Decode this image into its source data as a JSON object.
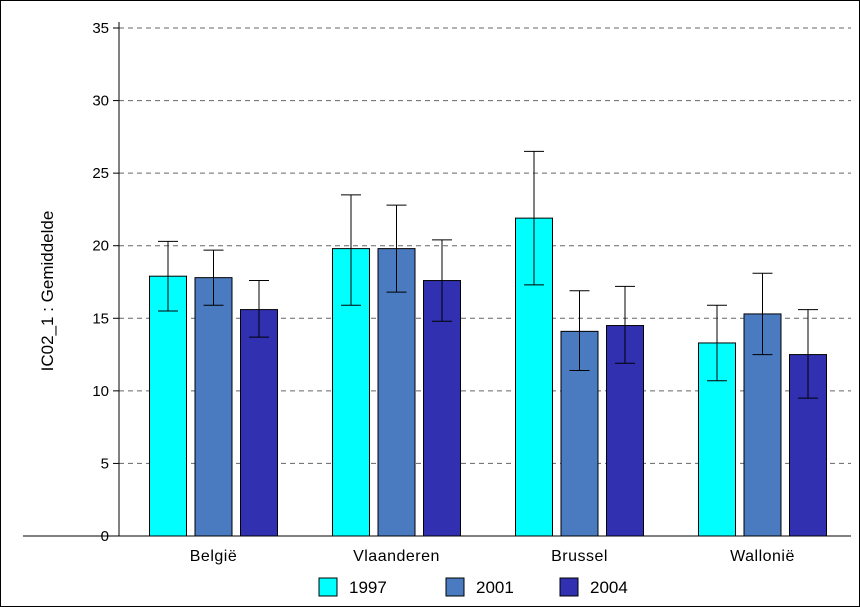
{
  "chart_data": {
    "type": "bar",
    "ylabel": "IC02_1 : Gemiddelde",
    "xlabel": "",
    "ylim": [
      0,
      35
    ],
    "yticks": [
      0,
      5,
      10,
      15,
      20,
      25,
      30,
      35
    ],
    "grid": true,
    "legend_position": "bottom",
    "categories": [
      "België",
      "Vlaanderen",
      "Brussel",
      "Wallonië"
    ],
    "series": [
      {
        "name": "1997",
        "color": "#00ffff",
        "values": [
          17.9,
          19.8,
          21.9,
          13.3
        ],
        "error_low": [
          15.5,
          15.9,
          17.3,
          10.7
        ],
        "error_high": [
          20.3,
          23.5,
          26.5,
          15.9
        ]
      },
      {
        "name": "2001",
        "color": "#4a7ac0",
        "values": [
          17.8,
          19.8,
          14.1,
          15.3
        ],
        "error_low": [
          15.9,
          16.8,
          11.4,
          12.5
        ],
        "error_high": [
          19.7,
          22.8,
          16.9,
          18.1
        ]
      },
      {
        "name": "2004",
        "color": "#3030b0",
        "values": [
          15.6,
          17.6,
          14.5,
          12.5
        ],
        "error_low": [
          13.7,
          14.8,
          11.9,
          9.5
        ],
        "error_high": [
          17.6,
          20.4,
          17.2,
          15.6
        ]
      }
    ]
  }
}
